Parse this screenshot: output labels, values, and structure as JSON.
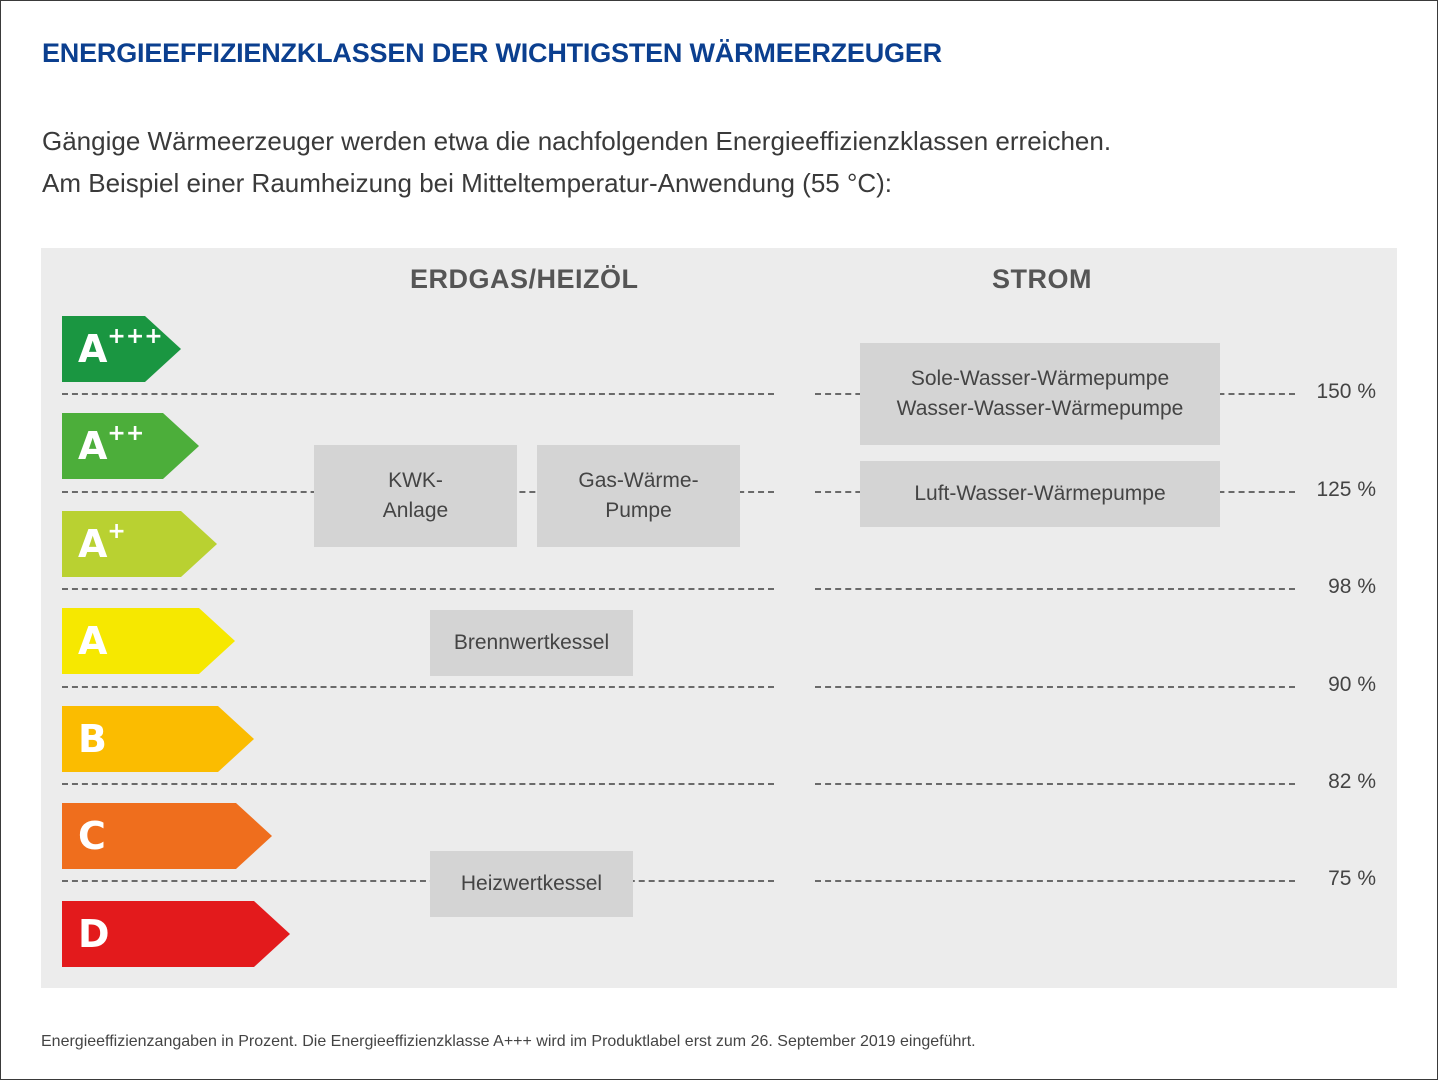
{
  "title": "ENERGIEEFFIZIENZKLASSEN DER WICHTIGSTEN WÄRMEERZEUGER",
  "intro": {
    "line1": "Gängige Wärmeerzeuger werden etwa die nachfolgenden Energieeffizienzklassen erreichen.",
    "line2": "Am Beispiel einer Raumheizung bei Mitteltemperatur-Anwendung (55 °C):"
  },
  "columns": {
    "left": "ERDGAS/HEIZÖL",
    "right": "STROM"
  },
  "classes": [
    {
      "letter": "A",
      "sup": "+++",
      "color": "#1a9641"
    },
    {
      "letter": "A",
      "sup": "++",
      "color": "#4cae3a"
    },
    {
      "letter": "A",
      "sup": "+",
      "color": "#b9d131"
    },
    {
      "letter": "A",
      "sup": "",
      "color": "#f6e800"
    },
    {
      "letter": "B",
      "sup": "",
      "color": "#fbbc00"
    },
    {
      "letter": "C",
      "sup": "",
      "color": "#ef6e1d"
    },
    {
      "letter": "D",
      "sup": "",
      "color": "#e31a1c"
    }
  ],
  "thresholds": [
    "150 %",
    "125 %",
    "98 %",
    "90 %",
    "82 %",
    "75 %"
  ],
  "boxes": {
    "kwk": [
      "KWK-",
      "Anlage"
    ],
    "gas_waermepumpe": [
      "Gas-Wärme-",
      "Pumpe"
    ],
    "brennwertkessel": [
      "Brennwertkessel"
    ],
    "heizwertkessel": [
      "Heizwertkessel"
    ],
    "sole_wasser": [
      "Sole-Wasser-Wärmepumpe",
      "Wasser-Wasser-Wärmepumpe"
    ],
    "luft_wasser": [
      "Luft-Wasser-Wärmepumpe"
    ]
  },
  "footnote": "Energieeffizienzangaben in Prozent. Die Energieeffizienzklasse A+++ wird im Produktlabel erst zum 26. September 2019 eingeführt."
}
